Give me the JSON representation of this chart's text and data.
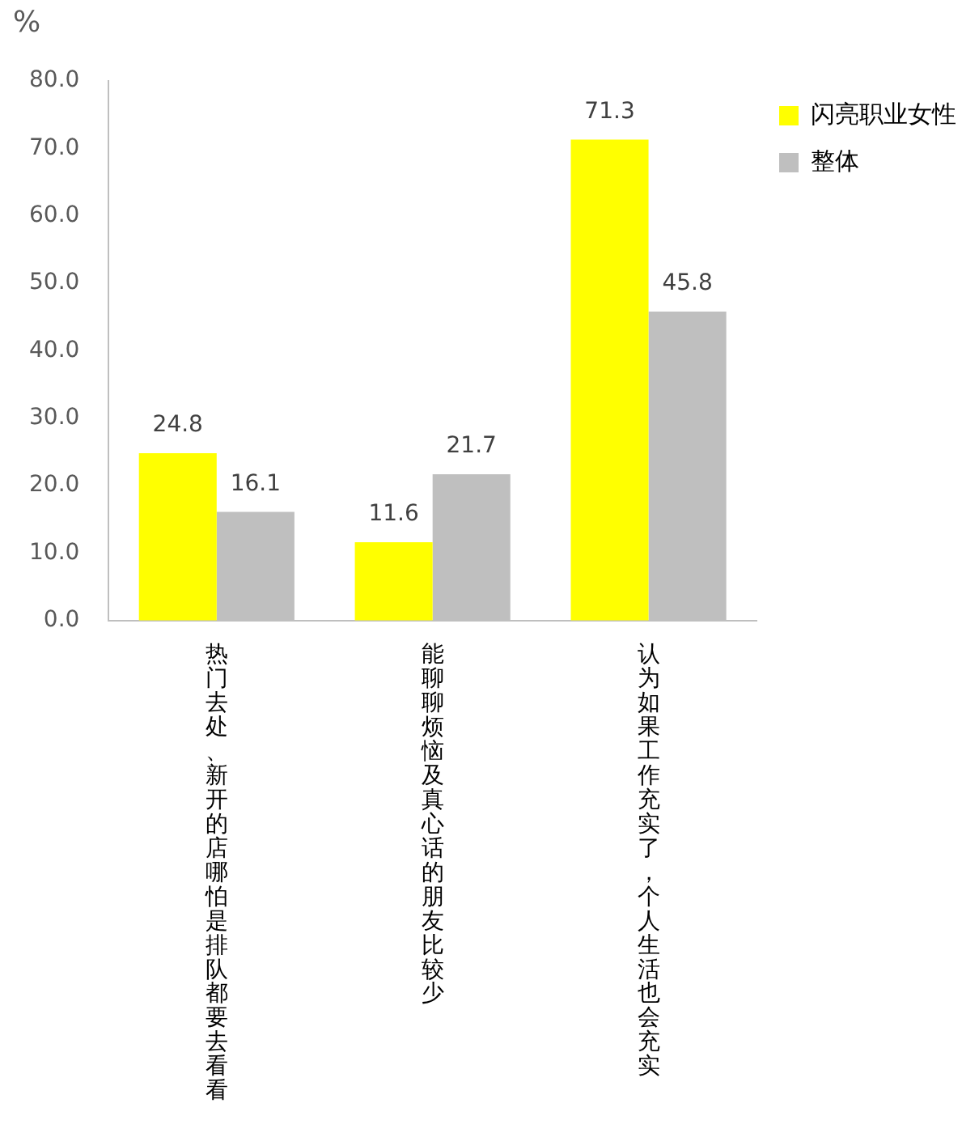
{
  "chart_data": {
    "type": "bar",
    "ylabel": "%",
    "categories": [
      "热门去处、新开的店哪怕是排队都要去看看",
      "能聊聊烦恼及真心话的朋友比较少",
      "认为如果工作充实了，个人生活也会充实"
    ],
    "series": [
      {
        "name": "闪亮职业女性",
        "color": "#ffff00",
        "values": [
          24.8,
          11.6,
          71.3
        ]
      },
      {
        "name": "整体",
        "color": "#bfbfbf",
        "values": [
          16.1,
          21.7,
          45.8
        ]
      }
    ],
    "ylim": [
      0,
      80
    ],
    "yticks": [
      {
        "value": 0,
        "label": "0.0"
      },
      {
        "value": 10,
        "label": "10.0"
      },
      {
        "value": 20,
        "label": "20.0"
      },
      {
        "value": 30,
        "label": "30.0"
      },
      {
        "value": 40,
        "label": "40.0"
      },
      {
        "value": 50,
        "label": "50.0"
      },
      {
        "value": 60,
        "label": "60.0"
      },
      {
        "value": 70,
        "label": "70.0"
      },
      {
        "value": 80,
        "label": "80.0"
      }
    ],
    "grid": false,
    "legend": "top right",
    "data_labels": true
  }
}
